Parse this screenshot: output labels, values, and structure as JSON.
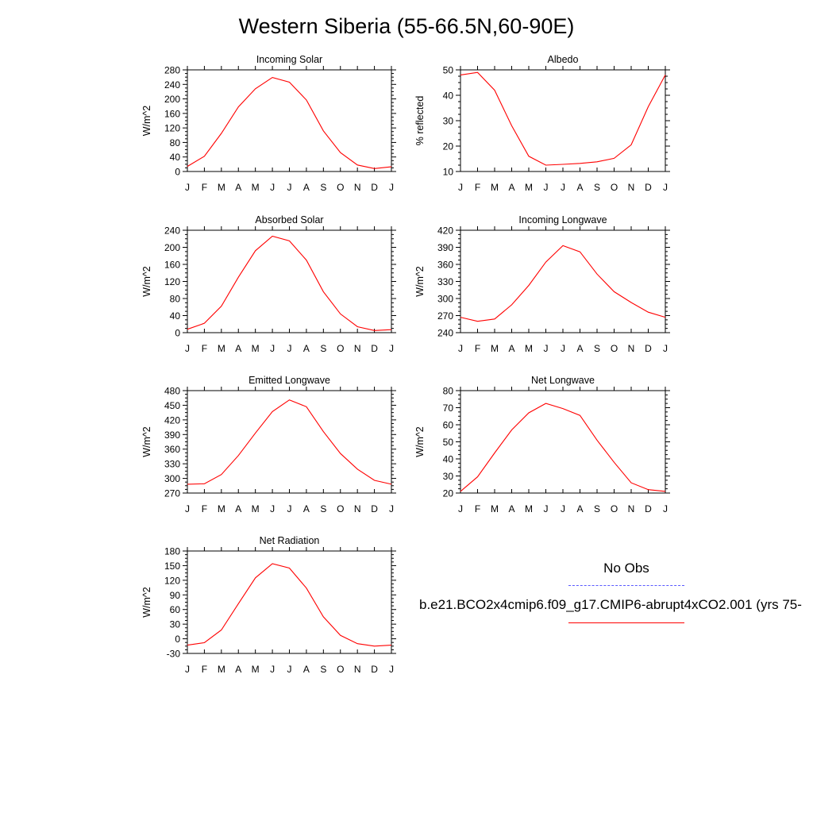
{
  "page_title": "Western Siberia (55-66.5N,60-90E)",
  "legend": {
    "obs_label": "No Obs",
    "model_label": "b.e21.BCO2x4cmip6.f09_g17.CMIP6-abrupt4xCO2.001 (yrs 75-",
    "obs_color": "#5a5aff",
    "model_color": "#ff0000"
  },
  "chart_data": [
    {
      "type": "line",
      "title": "Incoming Solar",
      "ylabel": "W/m^2",
      "categories": [
        "J",
        "F",
        "M",
        "A",
        "M",
        "J",
        "J",
        "A",
        "S",
        "O",
        "N",
        "D",
        "J"
      ],
      "ylim": [
        0,
        280
      ],
      "yticks": [
        0,
        40,
        80,
        120,
        160,
        200,
        240,
        280
      ],
      "series": [
        {
          "values": [
            14,
            42,
            105,
            178,
            228,
            259,
            246,
            197,
            112,
            52,
            18,
            8,
            13
          ]
        }
      ]
    },
    {
      "type": "line",
      "title": "Albedo",
      "ylabel": "% reflected",
      "categories": [
        "J",
        "F",
        "M",
        "A",
        "M",
        "J",
        "J",
        "A",
        "S",
        "O",
        "N",
        "D",
        "J"
      ],
      "ylim": [
        10,
        50
      ],
      "yticks": [
        10,
        20,
        30,
        40,
        50
      ],
      "series": [
        {
          "values": [
            48,
            49,
            42,
            28,
            16,
            12.5,
            12.8,
            13.2,
            13.8,
            15.2,
            20.5,
            35.5,
            48
          ]
        }
      ]
    },
    {
      "type": "line",
      "title": "Absorbed Solar",
      "ylabel": "W/m^2",
      "categories": [
        "J",
        "F",
        "M",
        "A",
        "M",
        "J",
        "J",
        "A",
        "S",
        "O",
        "N",
        "D",
        "J"
      ],
      "ylim": [
        0,
        240
      ],
      "yticks": [
        0,
        40,
        80,
        120,
        160,
        200,
        240
      ],
      "series": [
        {
          "values": [
            8,
            22,
            62,
            130,
            192,
            226,
            215,
            170,
            96,
            44,
            14,
            5,
            7
          ]
        }
      ]
    },
    {
      "type": "line",
      "title": "Incoming Longwave",
      "ylabel": "W/m^2",
      "categories": [
        "J",
        "F",
        "M",
        "A",
        "M",
        "J",
        "J",
        "A",
        "S",
        "O",
        "N",
        "D",
        "J"
      ],
      "ylim": [
        240,
        420
      ],
      "yticks": [
        240,
        270,
        300,
        330,
        360,
        390,
        420
      ],
      "series": [
        {
          "values": [
            267,
            260,
            264,
            289,
            323,
            364,
            393,
            382,
            343,
            312,
            293,
            276,
            267
          ]
        }
      ]
    },
    {
      "type": "line",
      "title": "Emitted Longwave",
      "ylabel": "W/m^2",
      "categories": [
        "J",
        "F",
        "M",
        "A",
        "M",
        "J",
        "J",
        "A",
        "S",
        "O",
        "N",
        "D",
        "J"
      ],
      "ylim": [
        270,
        480
      ],
      "yticks": [
        270,
        300,
        330,
        360,
        390,
        420,
        450,
        480
      ],
      "series": [
        {
          "values": [
            288,
            289,
            308,
            347,
            393,
            437,
            461,
            447,
            396,
            351,
            319,
            296,
            288
          ]
        }
      ]
    },
    {
      "type": "line",
      "title": "Net Longwave",
      "ylabel": "W/m^2",
      "categories": [
        "J",
        "F",
        "M",
        "A",
        "M",
        "J",
        "J",
        "A",
        "S",
        "O",
        "N",
        "D",
        "J"
      ],
      "ylim": [
        20,
        80
      ],
      "yticks": [
        20,
        30,
        40,
        50,
        60,
        70,
        80
      ],
      "series": [
        {
          "values": [
            21,
            29.5,
            43.5,
            57,
            67,
            72.5,
            69.5,
            65.5,
            51,
            38,
            26,
            22,
            21
          ]
        }
      ]
    },
    {
      "type": "line",
      "title": "Net Radiation",
      "ylabel": "W/m^2",
      "categories": [
        "J",
        "F",
        "M",
        "A",
        "M",
        "J",
        "J",
        "A",
        "S",
        "O",
        "N",
        "D",
        "J"
      ],
      "ylim": [
        -30,
        180
      ],
      "yticks": [
        -30,
        0,
        30,
        60,
        90,
        120,
        150,
        180
      ],
      "series": [
        {
          "values": [
            -13,
            -8,
            18,
            72,
            125,
            154,
            145,
            104,
            45,
            7,
            -10,
            -15,
            -13
          ]
        }
      ]
    }
  ]
}
